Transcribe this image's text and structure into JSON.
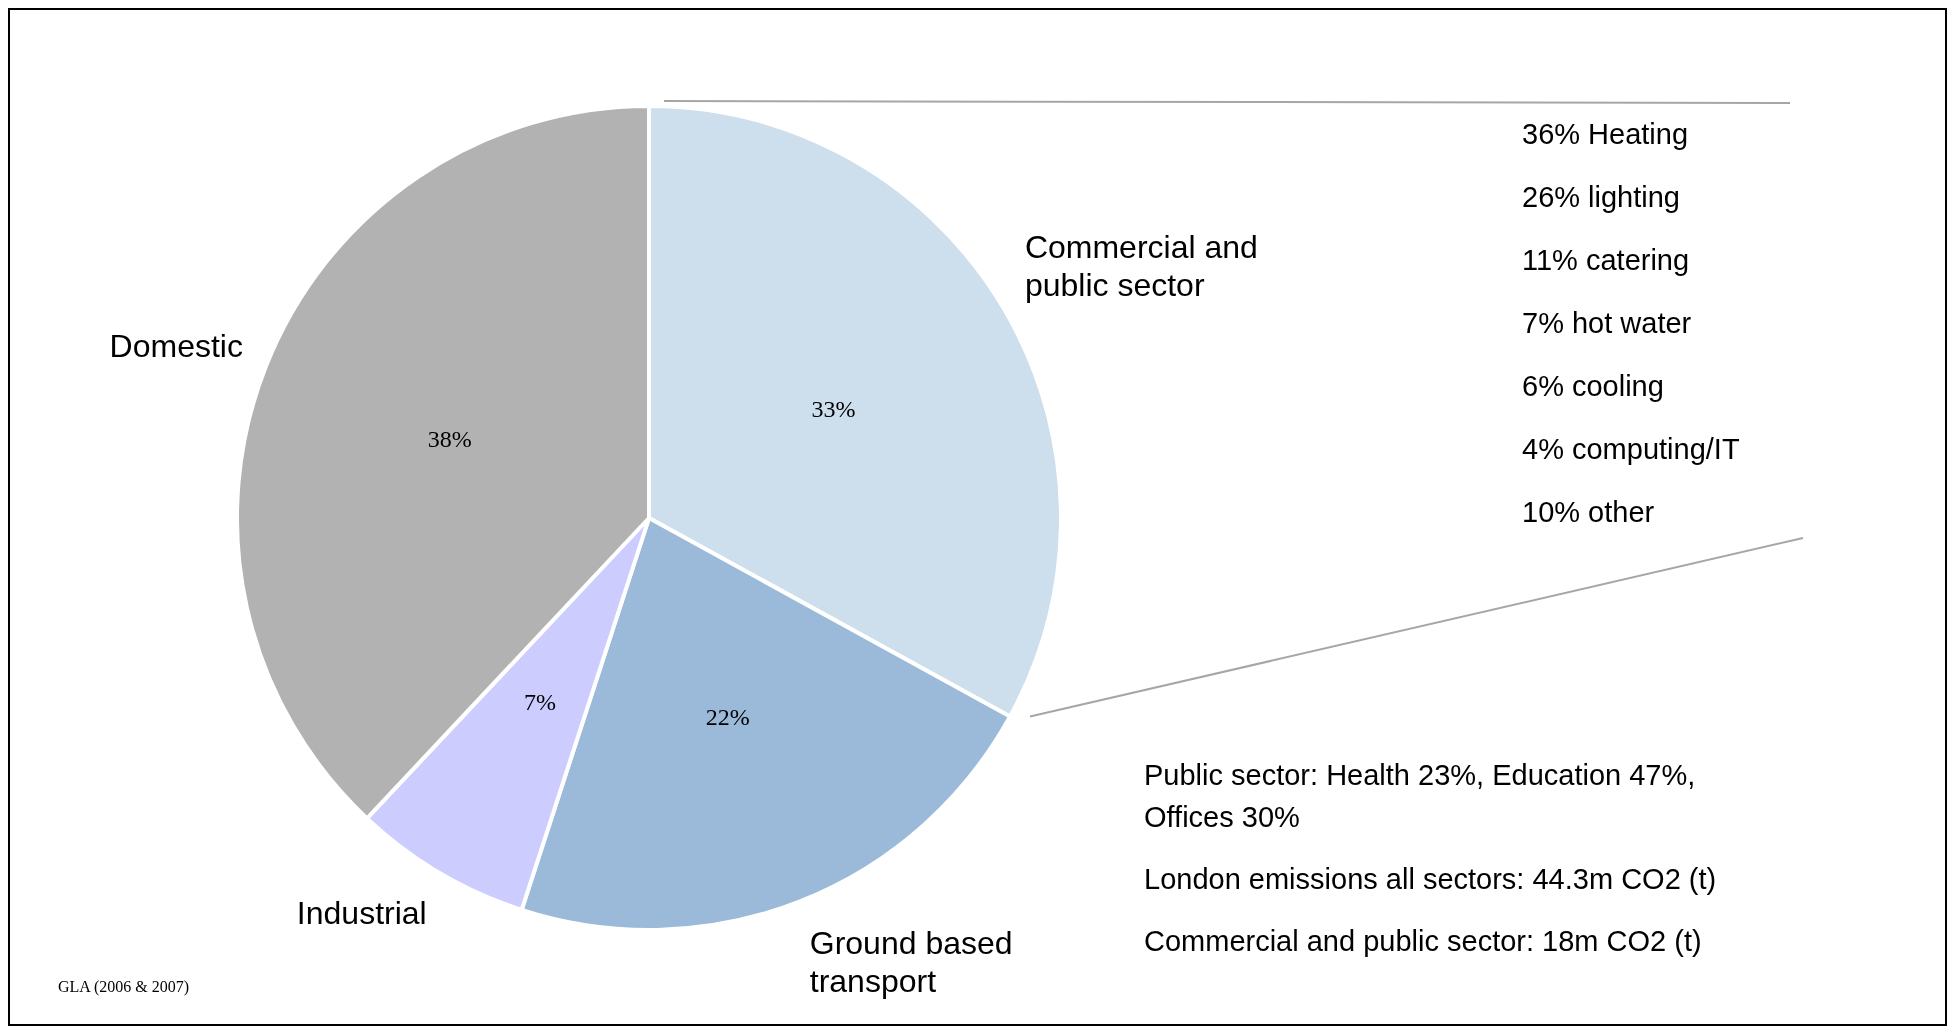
{
  "chart_data": {
    "type": "pie",
    "categories": [
      "Commercial and public sector",
      "Ground based transport",
      "Industrial",
      "Domestic"
    ],
    "values": [
      33,
      22,
      7,
      38
    ],
    "colors": [
      "#cddeed",
      "#9bbad9",
      "#ccccff",
      "#b2b2b2"
    ],
    "value_labels": [
      "33%",
      "22%",
      "7%",
      "38%"
    ],
    "annotations": [
      "36% Heating",
      "26% lighting",
      "11% catering",
      "7% hot water",
      "6% cooling",
      "4% computing/IT",
      "10% other",
      "Public sector: Health  23%, Education 47%, Offices 30%",
      "London emissions all sectors: 44.3m CO2 (t)",
      "Commercial and public sector: 18m CO2 (t)",
      "GLA (2006 & 2007)"
    ]
  }
}
